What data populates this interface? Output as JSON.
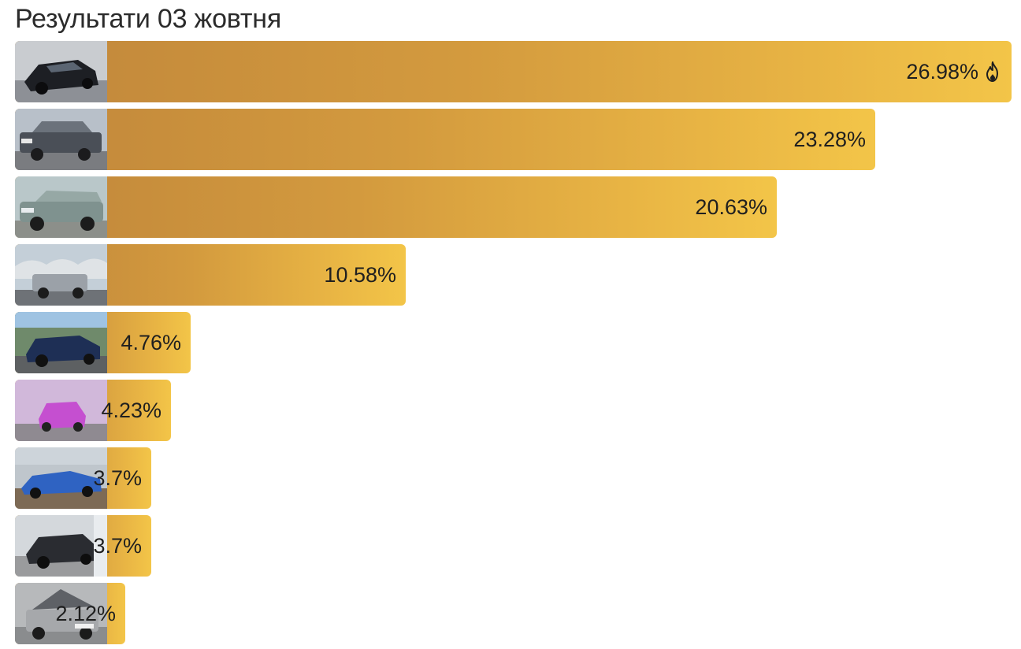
{
  "header": {
    "title": "Результати 03 жовтня"
  },
  "chart_data": {
    "type": "bar",
    "orientation": "horizontal",
    "title": "Результати 03 жовтня",
    "xlabel": "",
    "ylabel": "",
    "unit": "%",
    "xlim": [
      0,
      26.98
    ],
    "grid": false,
    "legend": "none",
    "bars": [
      {
        "value": 26.98,
        "label": "26.98%",
        "leader": true,
        "badge_icon": "fire-icon"
      },
      {
        "value": 23.28,
        "label": "23.28%"
      },
      {
        "value": 20.63,
        "label": "20.63%"
      },
      {
        "value": 10.58,
        "label": "10.58%"
      },
      {
        "value": 4.76,
        "label": "4.76%"
      },
      {
        "value": 4.23,
        "label": "4.23%"
      },
      {
        "value": 3.7,
        "label": "3.7%"
      },
      {
        "value": 3.7,
        "label": "3.7%"
      },
      {
        "value": 2.12,
        "label": "2.12%"
      }
    ],
    "thumbnails": [
      "dark-sports-car-photo",
      "gray-sedan-photo",
      "silver-wagon-photo",
      "silver-suv-photo",
      "blue-coupe-photo",
      "pink-car-photo",
      "blue-hatchback-photo",
      "dark-sedan-photo",
      "gray-sedan-hood-open-photo"
    ],
    "colors": {
      "bar_start": "#c1873b",
      "bar_end": "#f3c548",
      "text": "#1f1f1f"
    }
  }
}
